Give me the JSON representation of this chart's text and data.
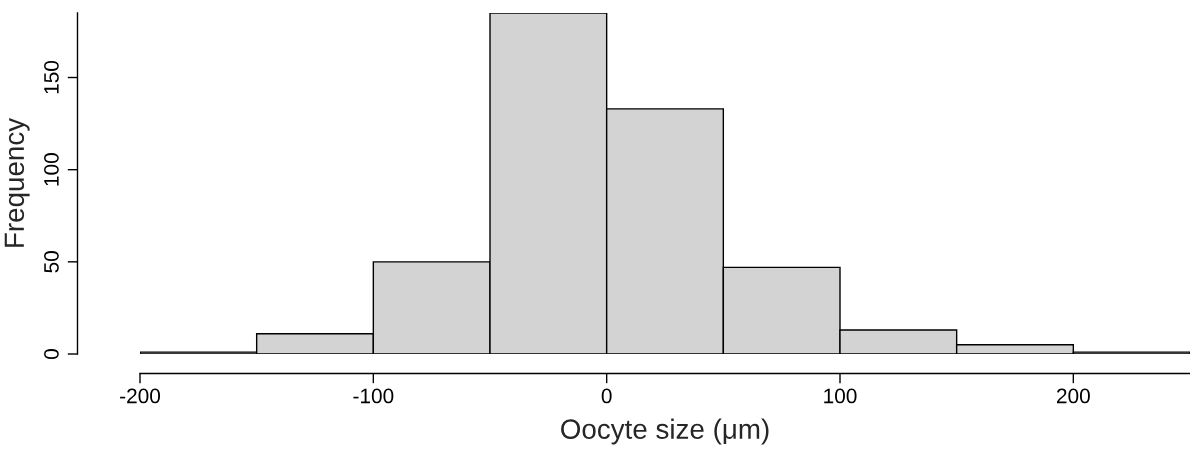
{
  "chart_data": {
    "type": "histogram",
    "xlabel": "Oocyte size (μm)",
    "ylabel": "Frequency",
    "bins": [
      -200,
      -150,
      -100,
      -50,
      0,
      50,
      100,
      150,
      200,
      250
    ],
    "values": [
      1,
      11,
      50,
      185,
      133,
      47,
      13,
      5,
      1
    ],
    "color": "#d3d3d3",
    "xlim": [
      -200,
      250
    ],
    "xticks": [
      -200,
      -100,
      0,
      100,
      200
    ],
    "ylim": [
      0,
      185
    ],
    "yticks": [
      0,
      50,
      100,
      150
    ],
    "grid": false
  }
}
